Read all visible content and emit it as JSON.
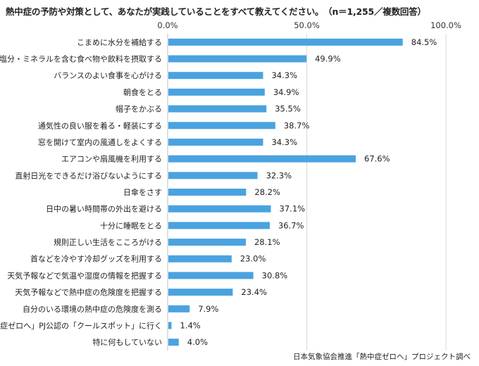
{
  "chart_data": {
    "type": "bar",
    "orientation": "horizontal",
    "title": "熱中症の予防や対策として、あなたが実践していることをすべて教えてください。　（n＝1,255／複数回答）",
    "source": "日本気象協会推進「熱中症ゼロへ」プロジェクト調べ",
    "xlim": [
      0,
      100
    ],
    "x_ticks": [
      "0.0%",
      "50.0%",
      "100.0%"
    ],
    "x_tick_values": [
      0,
      50,
      100
    ],
    "grid": true,
    "bar_color": "#4aa3df",
    "categories": [
      "こまめに水分を補給する",
      "塩分・ミネラルを含む食べ物や飲料を摂取する",
      "バランスのよい食事を心がける",
      "朝食をとる",
      "帽子をかぶる",
      "通気性の良い服を着る・軽装にする",
      "窓を開けて室内の風通しをよくする",
      "エアコンや扇風機を利用する",
      "直射日光をできるだけ浴びないようにする",
      "日傘をさす",
      "日中の暑い時間帯の外出を避ける",
      "十分に睡眠をとる",
      "規則正しい生活をこころがける",
      "首などを冷やす冷却グッズを利用する",
      "天気予報などで気温や湿度の情報を把握する",
      "天気予報などで熱中症の危険度を把握する",
      "自分のいる環境の熱中症の危険度を測る",
      "「熱中症ゼロへ」PJ公認の「クールスポット」に行く",
      "特に何もしていない"
    ],
    "values": [
      84.5,
      49.9,
      34.3,
      34.9,
      35.5,
      38.7,
      34.3,
      67.6,
      32.3,
      28.2,
      37.1,
      36.7,
      28.1,
      23.0,
      30.8,
      23.4,
      7.9,
      1.4,
      4.0
    ],
    "value_labels": [
      "84.5%",
      "49.9%",
      "34.3%",
      "34.9%",
      "35.5%",
      "38.7%",
      "34.3%",
      "67.6%",
      "32.3%",
      "28.2%",
      "37.1%",
      "36.7%",
      "28.1%",
      "23.0%",
      "30.8%",
      "23.4%",
      "7.9%",
      "1.4%",
      "4.0%"
    ]
  }
}
